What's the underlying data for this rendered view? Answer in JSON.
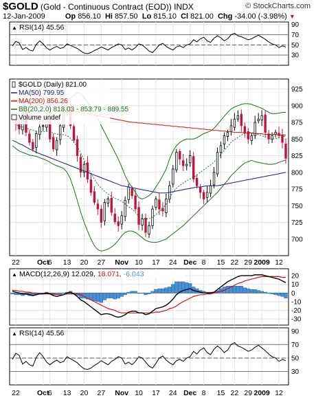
{
  "header": {
    "symbol": "$GOLD",
    "name": "(Gold - Continuous Contract (EOD))",
    "exchange": "INDX",
    "source": "© StockCharts.com",
    "date": "12-Jan-2009",
    "op_label": "Op",
    "op": "856.10",
    "hi_label": "Hi",
    "hi": "857.50",
    "lo_label": "Lo",
    "lo": "815.10",
    "cl_label": "Cl",
    "cl": "821.00",
    "chg_label": "Chg",
    "chg": "-34.00 (-3.98%)",
    "chg_arrow": "▼"
  },
  "colors": {
    "up": "#ffffff",
    "down": "#c0143c",
    "ma50": "#1a1a8c",
    "ma200": "#d01010",
    "bb": "#1e6e1e",
    "macd": "#000000",
    "signal": "#d01010",
    "hist": "#4a8fd0"
  },
  "chart_data": [
    {
      "type": "line",
      "title": "RSI(14) 45.56",
      "ylim": [
        10,
        95
      ],
      "yticks": [
        30,
        50,
        70,
        90
      ],
      "series": [
        {
          "name": "RSI(14) 45.56",
          "values": [
            48,
            57,
            54,
            41,
            45,
            40,
            38,
            51,
            58,
            52,
            44,
            40,
            44,
            47,
            43,
            45,
            52,
            49,
            46,
            43,
            38,
            34,
            33,
            35,
            39,
            42,
            46,
            43,
            40,
            45,
            48,
            52,
            50,
            41,
            44,
            40,
            45,
            52,
            50,
            44,
            38,
            35,
            42,
            50,
            53,
            47,
            43,
            40,
            46,
            48,
            45,
            50,
            52,
            60,
            56,
            62,
            65,
            58,
            55,
            63,
            68,
            64,
            58,
            62,
            70,
            73,
            68,
            66,
            63,
            60,
            62,
            66,
            69,
            65,
            61,
            56,
            52,
            50,
            45,
            48,
            46
          ]
        }
      ]
    },
    {
      "type": "candlestick",
      "title": "$GOLD (Daily) 821.00",
      "ylim": [
        675,
        940
      ],
      "yticks": [
        700,
        725,
        750,
        775,
        800,
        825,
        850,
        875,
        900,
        925
      ],
      "x_labels": [
        {
          "i": 1,
          "t": "22"
        },
        {
          "i": 9,
          "t": "Oct"
        },
        {
          "i": 11,
          "t": "6"
        },
        {
          "i": 16,
          "t": "13"
        },
        {
          "i": 21,
          "t": "20"
        },
        {
          "i": 26,
          "t": "27"
        },
        {
          "i": 32,
          "t": "Nov"
        },
        {
          "i": 37,
          "t": "10"
        },
        {
          "i": 42,
          "t": "17"
        },
        {
          "i": 47,
          "t": "24"
        },
        {
          "i": 52,
          "t": "Dec"
        },
        {
          "i": 56,
          "t": "8"
        },
        {
          "i": 61,
          "t": "15"
        },
        {
          "i": 65,
          "t": "22"
        },
        {
          "i": 69,
          "t": "29"
        },
        {
          "i": 73,
          "t": "2009"
        },
        {
          "i": 78,
          "t": "12"
        }
      ],
      "legend": [
        {
          "name": "$GOLD (Daily) 821.00",
          "color": "#000000"
        },
        {
          "name": "MA(50) 799.95",
          "color": "#1a1a8c"
        },
        {
          "name": "MA(200) 856.26",
          "color": "#d01010"
        },
        {
          "name": "BB(20,2.0) 818.03 - 853.79 - 889.55",
          "color": "#1e6e1e"
        },
        {
          "name": "Volume undef",
          "color": "#000000"
        }
      ],
      "close": [
        880,
        872,
        865,
        890,
        860,
        845,
        835,
        858,
        868,
        870,
        882,
        850,
        835,
        848,
        870,
        890,
        900,
        870,
        848,
        825,
        800,
        812,
        790,
        770,
        755,
        745,
        725,
        755,
        760,
        740,
        726,
        720,
        735,
        758,
        778,
        765,
        745,
        722,
        730,
        710,
        720,
        745,
        760,
        745,
        742,
        760,
        780,
        805,
        830,
        820,
        810,
        812,
        825,
        790,
        780,
        770,
        760,
        770,
        780,
        800,
        830,
        840,
        855,
        860,
        870,
        880,
        885,
        870,
        860,
        850,
        855,
        875,
        880,
        885,
        860,
        850,
        855,
        860,
        855,
        845,
        821
      ],
      "ma50": [
        848,
        846,
        843,
        841,
        838,
        835,
        833,
        830,
        828,
        826,
        824,
        822,
        820,
        818,
        816,
        814,
        812,
        810,
        808,
        806,
        804,
        802,
        800,
        798,
        796,
        794,
        792,
        790,
        788,
        786,
        784,
        782,
        780,
        779,
        778,
        777,
        776,
        775,
        774,
        773,
        772,
        771,
        770,
        769,
        769,
        769,
        770,
        771,
        772,
        773,
        774,
        775,
        776,
        777,
        778,
        778,
        779,
        780,
        780,
        780,
        780,
        781,
        782,
        783,
        784,
        785,
        786,
        787,
        788,
        789,
        790,
        791,
        792,
        793,
        794,
        795,
        796,
        797,
        798,
        799,
        800
      ],
      "ma200": [
        910,
        909,
        908,
        907,
        906,
        905,
        904,
        903,
        902,
        901,
        900,
        899,
        898,
        897,
        896,
        895,
        894,
        893,
        892,
        891,
        890,
        889,
        888,
        887,
        886,
        885,
        884,
        883,
        882,
        881,
        880,
        879,
        878,
        877,
        876,
        875,
        875,
        874,
        874,
        873,
        873,
        872,
        872,
        871,
        871,
        870,
        870,
        869,
        869,
        868,
        868,
        867,
        867,
        866,
        866,
        865,
        865,
        864,
        864,
        863,
        863,
        862,
        862,
        861,
        861,
        860,
        860,
        860,
        859,
        859,
        859,
        858,
        858,
        858,
        857,
        857,
        857,
        857,
        856,
        856,
        856
      ],
      "bb_upper": [
        910,
        908,
        906,
        906,
        905,
        903,
        901,
        900,
        900,
        902,
        905,
        906,
        906,
        905,
        905,
        907,
        910,
        912,
        915,
        920,
        918,
        912,
        905,
        898,
        890,
        880,
        870,
        860,
        850,
        840,
        830,
        820,
        808,
        795,
        785,
        778,
        770,
        762,
        760,
        762,
        765,
        770,
        778,
        786,
        795,
        805,
        820,
        832,
        840,
        845,
        848,
        850,
        850,
        850,
        852,
        855,
        858,
        860,
        862,
        866,
        872,
        878,
        884,
        890,
        895,
        898,
        900,
        902,
        903,
        903,
        902,
        900,
        898,
        896,
        893,
        890,
        888,
        888,
        889,
        890,
        890
      ],
      "bb_lower": [
        840,
        836,
        832,
        830,
        828,
        826,
        825,
        824,
        822,
        820,
        818,
        815,
        812,
        810,
        808,
        806,
        800,
        790,
        775,
        758,
        740,
        725,
        712,
        700,
        690,
        684,
        682,
        683,
        685,
        688,
        692,
        698,
        705,
        710,
        712,
        712,
        710,
        706,
        702,
        698,
        696,
        695,
        695,
        696,
        698,
        700,
        704,
        708,
        712,
        716,
        720,
        725,
        730,
        735,
        740,
        745,
        750,
        755,
        760,
        765,
        770,
        776,
        782,
        788,
        795,
        800,
        805,
        810,
        814,
        816,
        818,
        816,
        815,
        814,
        813,
        812,
        812,
        813,
        815,
        817,
        818
      ]
    },
    {
      "type": "line",
      "title": "MACD(12,26,9) 12.029, 18.071, -6.043",
      "ylim": [
        -37,
        28
      ],
      "yticks": [
        -30,
        -20,
        -10,
        0,
        10,
        20
      ],
      "series": [
        {
          "name": "MACD(12,26,9) 12.029",
          "values": [
            2,
            1,
            0,
            -1,
            -1,
            -2,
            -3,
            -2,
            -1,
            -1,
            0,
            -1,
            -3,
            -4,
            -3,
            -2,
            0,
            1,
            -1,
            -4,
            -8,
            -10,
            -13,
            -16,
            -19,
            -22,
            -25,
            -24,
            -24,
            -25,
            -27,
            -28,
            -27,
            -25,
            -22,
            -21,
            -21,
            -23,
            -23,
            -25,
            -24,
            -21,
            -18,
            -17,
            -16,
            -14,
            -11,
            -7,
            -2,
            1,
            3,
            4,
            5,
            3,
            2,
            1,
            0,
            0,
            0,
            1,
            4,
            7,
            10,
            13,
            15,
            17,
            19,
            20,
            20,
            20,
            20,
            21,
            21,
            21,
            20,
            19,
            18,
            17,
            16,
            14,
            12
          ]
        },
        {
          "name": "18.071",
          "values": [
            3,
            3,
            2,
            2,
            1,
            1,
            0,
            0,
            -1,
            -1,
            -1,
            -1,
            -1,
            -2,
            -2,
            -2,
            -1,
            -1,
            -1,
            -1,
            -2,
            -4,
            -6,
            -8,
            -10,
            -12,
            -14,
            -16,
            -18,
            -19,
            -20,
            -22,
            -23,
            -23,
            -23,
            -23,
            -23,
            -23,
            -23,
            -23,
            -23,
            -23,
            -22,
            -22,
            -21,
            -20,
            -18,
            -17,
            -15,
            -12,
            -10,
            -8,
            -6,
            -4,
            -3,
            -2,
            -2,
            -1,
            -1,
            0,
            1,
            2,
            3,
            5,
            7,
            9,
            11,
            12,
            14,
            15,
            16,
            17,
            18,
            19,
            19,
            19,
            19,
            19,
            19,
            18,
            18
          ]
        },
        {
          "name": "-6.043",
          "values": [
            -1,
            -2,
            -2,
            -3,
            -2,
            -3,
            -3,
            -2,
            0,
            0,
            1,
            0,
            -2,
            -2,
            -1,
            0,
            1,
            2,
            0,
            -3,
            -6,
            -6,
            -7,
            -8,
            -9,
            -10,
            -11,
            -8,
            -6,
            -6,
            -7,
            -6,
            -4,
            -2,
            1,
            2,
            2,
            0,
            0,
            -2,
            -1,
            2,
            4,
            5,
            5,
            6,
            7,
            10,
            13,
            13,
            13,
            12,
            11,
            7,
            5,
            3,
            2,
            1,
            1,
            1,
            3,
            5,
            7,
            8,
            8,
            8,
            8,
            8,
            6,
            5,
            4,
            4,
            3,
            2,
            1,
            0,
            -1,
            -2,
            -3,
            -4,
            -6
          ]
        }
      ]
    },
    {
      "type": "line",
      "title": "RSI(14) 45.56",
      "ylim": [
        10,
        95
      ],
      "yticks": [
        30,
        50,
        70,
        90
      ],
      "series": [
        {
          "name": "RSI(14) 45.56",
          "values": [
            48,
            57,
            54,
            41,
            45,
            40,
            38,
            51,
            58,
            52,
            44,
            40,
            44,
            47,
            43,
            45,
            52,
            49,
            46,
            43,
            38,
            34,
            33,
            35,
            39,
            42,
            46,
            43,
            40,
            45,
            48,
            52,
            50,
            41,
            44,
            40,
            45,
            52,
            50,
            44,
            38,
            35,
            42,
            50,
            53,
            47,
            43,
            40,
            46,
            48,
            45,
            50,
            52,
            60,
            56,
            62,
            65,
            58,
            55,
            63,
            68,
            64,
            58,
            62,
            70,
            73,
            68,
            66,
            63,
            60,
            62,
            66,
            69,
            65,
            61,
            56,
            52,
            50,
            45,
            48,
            46
          ]
        }
      ],
      "x_labels": [
        {
          "i": 1,
          "t": "22"
        },
        {
          "i": 9,
          "t": "Oct"
        },
        {
          "i": 11,
          "t": "6"
        },
        {
          "i": 16,
          "t": "13"
        },
        {
          "i": 21,
          "t": "20"
        },
        {
          "i": 26,
          "t": "27"
        },
        {
          "i": 32,
          "t": "Nov"
        },
        {
          "i": 37,
          "t": "10"
        },
        {
          "i": 42,
          "t": "17"
        },
        {
          "i": 47,
          "t": "24"
        },
        {
          "i": 52,
          "t": "Dec"
        },
        {
          "i": 56,
          "t": "8"
        },
        {
          "i": 61,
          "t": "15"
        },
        {
          "i": 65,
          "t": "22"
        },
        {
          "i": 69,
          "t": "29"
        },
        {
          "i": 73,
          "t": "2009"
        },
        {
          "i": 78,
          "t": "12"
        }
      ]
    }
  ]
}
